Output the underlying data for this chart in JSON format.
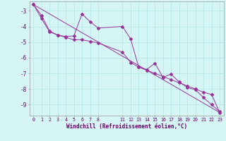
{
  "xlabel": "Windchill (Refroidissement éolien,°C)",
  "background_color": "#d6f5f5",
  "grid_color": "#b8e8e8",
  "line_color": "#993399",
  "xlim": [
    -0.5,
    23.5
  ],
  "ylim": [
    -9.7,
    -2.4
  ],
  "yticks": [
    -3,
    -4,
    -5,
    -6,
    -7,
    -8,
    -9
  ],
  "xticks": [
    0,
    1,
    2,
    3,
    4,
    5,
    6,
    7,
    8,
    11,
    12,
    13,
    14,
    15,
    16,
    17,
    18,
    19,
    20,
    21,
    22,
    23
  ],
  "series1_x": [
    0,
    1,
    2,
    3,
    4,
    5,
    6,
    7,
    8,
    11,
    12,
    13,
    14,
    15,
    16,
    17,
    18,
    19,
    20,
    21,
    22,
    23
  ],
  "series1_y": [
    -2.6,
    -3.3,
    -4.3,
    -4.55,
    -4.65,
    -4.6,
    -3.2,
    -3.7,
    -4.1,
    -4.0,
    -4.8,
    -6.6,
    -6.75,
    -6.35,
    -7.25,
    -7.05,
    -7.55,
    -7.9,
    -8.05,
    -8.55,
    -9.0,
    -9.45
  ],
  "series2_x": [
    0,
    1,
    2,
    3,
    4,
    5,
    6,
    7,
    8,
    11,
    12,
    13,
    14,
    15,
    16,
    17,
    18,
    19,
    20,
    21,
    22,
    23
  ],
  "series2_y": [
    -2.6,
    -3.5,
    -4.35,
    -4.55,
    -4.7,
    -4.85,
    -4.85,
    -4.95,
    -5.05,
    -5.65,
    -6.3,
    -6.6,
    -6.8,
    -7.0,
    -7.2,
    -7.4,
    -7.6,
    -7.8,
    -8.0,
    -8.2,
    -8.35,
    -9.5
  ],
  "trend_x": [
    0,
    23
  ],
  "trend_y": [
    -2.6,
    -9.5
  ]
}
